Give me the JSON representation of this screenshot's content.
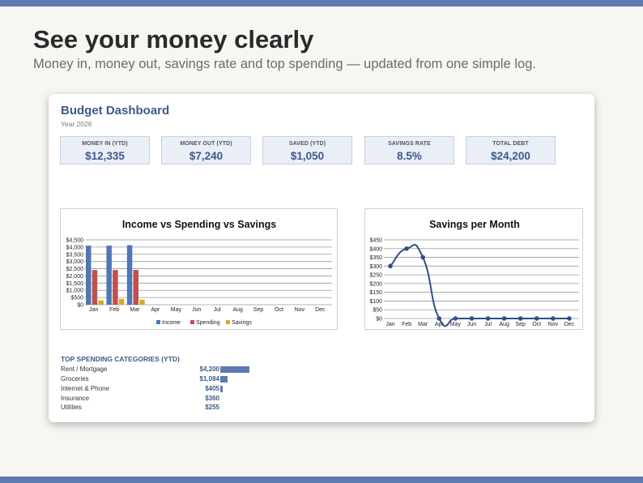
{
  "page": {
    "headline": "See your money clearly",
    "subhead": "Money in, money out, savings rate and top spending — updated from one simple log."
  },
  "dashboard": {
    "title": "Budget Dashboard",
    "year": "Year 2026",
    "kpis": [
      {
        "label": "MONEY IN (YTD)",
        "value": "$12,335"
      },
      {
        "label": "MONEY OUT (YTD)",
        "value": "$7,240"
      },
      {
        "label": "SAVED (YTD)",
        "value": "$1,050"
      },
      {
        "label": "SAVINGS RATE",
        "value": "8.5%"
      },
      {
        "label": "TOTAL DEBT",
        "value": "$24,200"
      }
    ],
    "spending": {
      "title": "TOP SPENDING CATEGORIES (YTD)",
      "rows": [
        {
          "name": "Rent / Mortgage",
          "amount": "$4,200",
          "value": 4200
        },
        {
          "name": "Groceries",
          "amount": "$1,084",
          "value": 1084
        },
        {
          "name": "Internet & Phone",
          "amount": "$405",
          "value": 405
        },
        {
          "name": "Insurance",
          "amount": "$360",
          "value": 360
        },
        {
          "name": "Utilities",
          "amount": "$255",
          "value": 255
        }
      ]
    }
  },
  "colors": {
    "accent": "#5f7cb0",
    "title": "#3d5a8a",
    "income": "#4f77b3",
    "spending": "#c0504d",
    "savings": "#d4a82a",
    "line": "#2e5088"
  },
  "chart_data": [
    {
      "type": "bar",
      "title": "Income vs Spending vs Savings",
      "categories": [
        "Jan",
        "Feb",
        "Mar",
        "Apr",
        "May",
        "Jun",
        "Jul",
        "Aug",
        "Sep",
        "Oct",
        "Nov",
        "Dec"
      ],
      "series": [
        {
          "name": "Income",
          "values": [
            4100,
            4100,
            4135,
            0,
            0,
            0,
            0,
            0,
            0,
            0,
            0,
            0
          ]
        },
        {
          "name": "Spending",
          "values": [
            2413,
            2413,
            2414,
            0,
            0,
            0,
            0,
            0,
            0,
            0,
            0,
            0
          ]
        },
        {
          "name": "Savings",
          "values": [
            300,
            400,
            350,
            0,
            0,
            0,
            0,
            0,
            0,
            0,
            0,
            0
          ]
        }
      ],
      "ylim": [
        0,
        4500
      ],
      "yticks": [
        "$0",
        "$500",
        "$1,000",
        "$1,500",
        "$2,000",
        "$2,500",
        "$3,000",
        "$3,500",
        "$4,000",
        "$4,500"
      ],
      "legend": "bottom",
      "grid": true
    },
    {
      "type": "line",
      "title": "Savings per Month",
      "categories": [
        "Jan",
        "Feb",
        "Mar",
        "Apr",
        "May",
        "Jun",
        "Jul",
        "Aug",
        "Sep",
        "Oct",
        "Nov",
        "Dec"
      ],
      "series": [
        {
          "values": [
            300,
            400,
            350,
            0,
            0,
            0,
            0,
            0,
            0,
            0,
            0,
            0
          ]
        }
      ],
      "ylim": [
        0,
        450
      ],
      "yticks": [
        "$0",
        "$50",
        "$100",
        "$150",
        "$200",
        "$250",
        "$300",
        "$350",
        "$400",
        "$450"
      ],
      "grid": true,
      "smooth": true
    }
  ]
}
